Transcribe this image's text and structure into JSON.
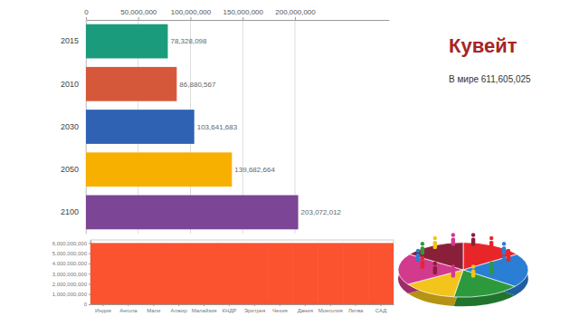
{
  "chart_data": [
    {
      "type": "bar",
      "orientation": "horizontal",
      "title": "Кувейт",
      "subtitle": "В мире 611,605,025",
      "categories": [
        "2015",
        "2010",
        "2030",
        "2050",
        "2100"
      ],
      "values": [
        78328098,
        86880567,
        103641683,
        139682664,
        203072012
      ],
      "value_labels": [
        "78,328,098",
        "86,880,567",
        "103,641,683",
        "139,682,664",
        "203,072,012"
      ],
      "colors": [
        "#1a9c7c",
        "#d6583a",
        "#2f62b3",
        "#f8b000",
        "#7c4595"
      ],
      "xlim": [
        0,
        290000000
      ],
      "xticks": [
        0,
        {
          "value": 50000000,
          "label": "50,000,000"
        },
        {
          "value": 100000000,
          "label": "100,000,000"
        },
        {
          "value": 150000000,
          "label": "150,000,000"
        },
        {
          "value": 200000000,
          "label": "200,000,000"
        }
      ],
      "grid": true,
      "data_labels": true
    },
    {
      "type": "bar",
      "categories": [
        "Индия",
        "Ангола",
        "Мали",
        "Алжир",
        "Малайзия",
        "КНДР",
        "Эритрея",
        "Чехия",
        "Дания",
        "Монголия",
        "Литва",
        "САД"
      ],
      "values": [
        6000000000,
        6000000000,
        6000000000,
        6000000000,
        6000000000,
        6000000000,
        6000000000,
        6000000000,
        6000000000,
        6000000000,
        6000000000,
        6000000000
      ],
      "color": "#fb5230",
      "ylim": [
        0,
        6300000000
      ],
      "yticks": [
        0,
        {
          "value": 1000000000,
          "label": "1,000,000,000"
        },
        {
          "value": 2000000000,
          "label": "2,000,000,000"
        },
        {
          "value": 3000000000,
          "label": "3,000,000,000"
        },
        {
          "value": 4000000000,
          "label": "4,000,000,000"
        },
        {
          "value": 5000000000,
          "label": "5,000,000,000"
        },
        {
          "value": 6000000000,
          "label": "6,000,000,000"
        }
      ]
    }
  ]
}
